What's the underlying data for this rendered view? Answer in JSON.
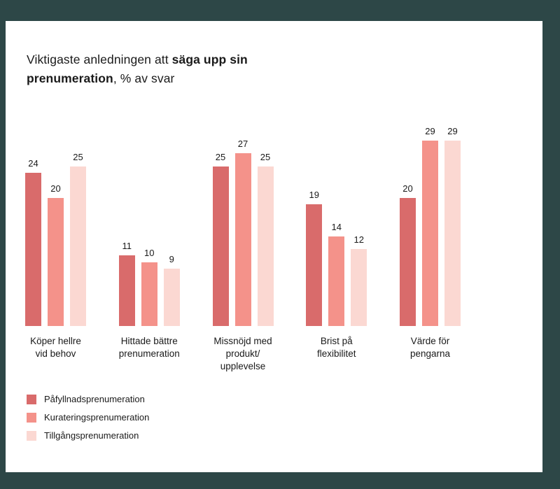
{
  "title": {
    "line1_regular": "Viktigaste anledningen att ",
    "line1_bold": "säga upp sin",
    "line2_bold": "prenumeration",
    "line2_regular": ", % av svar"
  },
  "colors": {
    "background": "#2d4747",
    "card": "#ffffff",
    "text": "#1a1a1a",
    "series": [
      "#d96b6b",
      "#f4928a",
      "#fbd8d2"
    ]
  },
  "chart_data": {
    "type": "bar",
    "title": "Viktigaste anledningen att säga upp sin prenumeration, % av svar",
    "categories": [
      "Köper hellre\nvid behov",
      "Hittade bättre\nprenumeration",
      "Missnöjd med\nprodukt/\nupplevelse",
      "Brist på\nflexibilitet",
      "Värde för\npengarna"
    ],
    "series": [
      {
        "name": "Påfyllnadsprenumeration",
        "values": [
          24,
          11,
          25,
          19,
          20
        ]
      },
      {
        "name": "Kurateringsprenumeration",
        "values": [
          20,
          10,
          27,
          14,
          29
        ]
      },
      {
        "name": "Tillgångsprenumeration",
        "values": [
          25,
          9,
          25,
          12,
          29
        ]
      }
    ],
    "xlabel": "",
    "ylabel": "% av svar",
    "ylim": [
      0,
      29
    ],
    "grid": false,
    "axes_visible": false,
    "value_labels": true,
    "legend_position": "bottom-left"
  }
}
